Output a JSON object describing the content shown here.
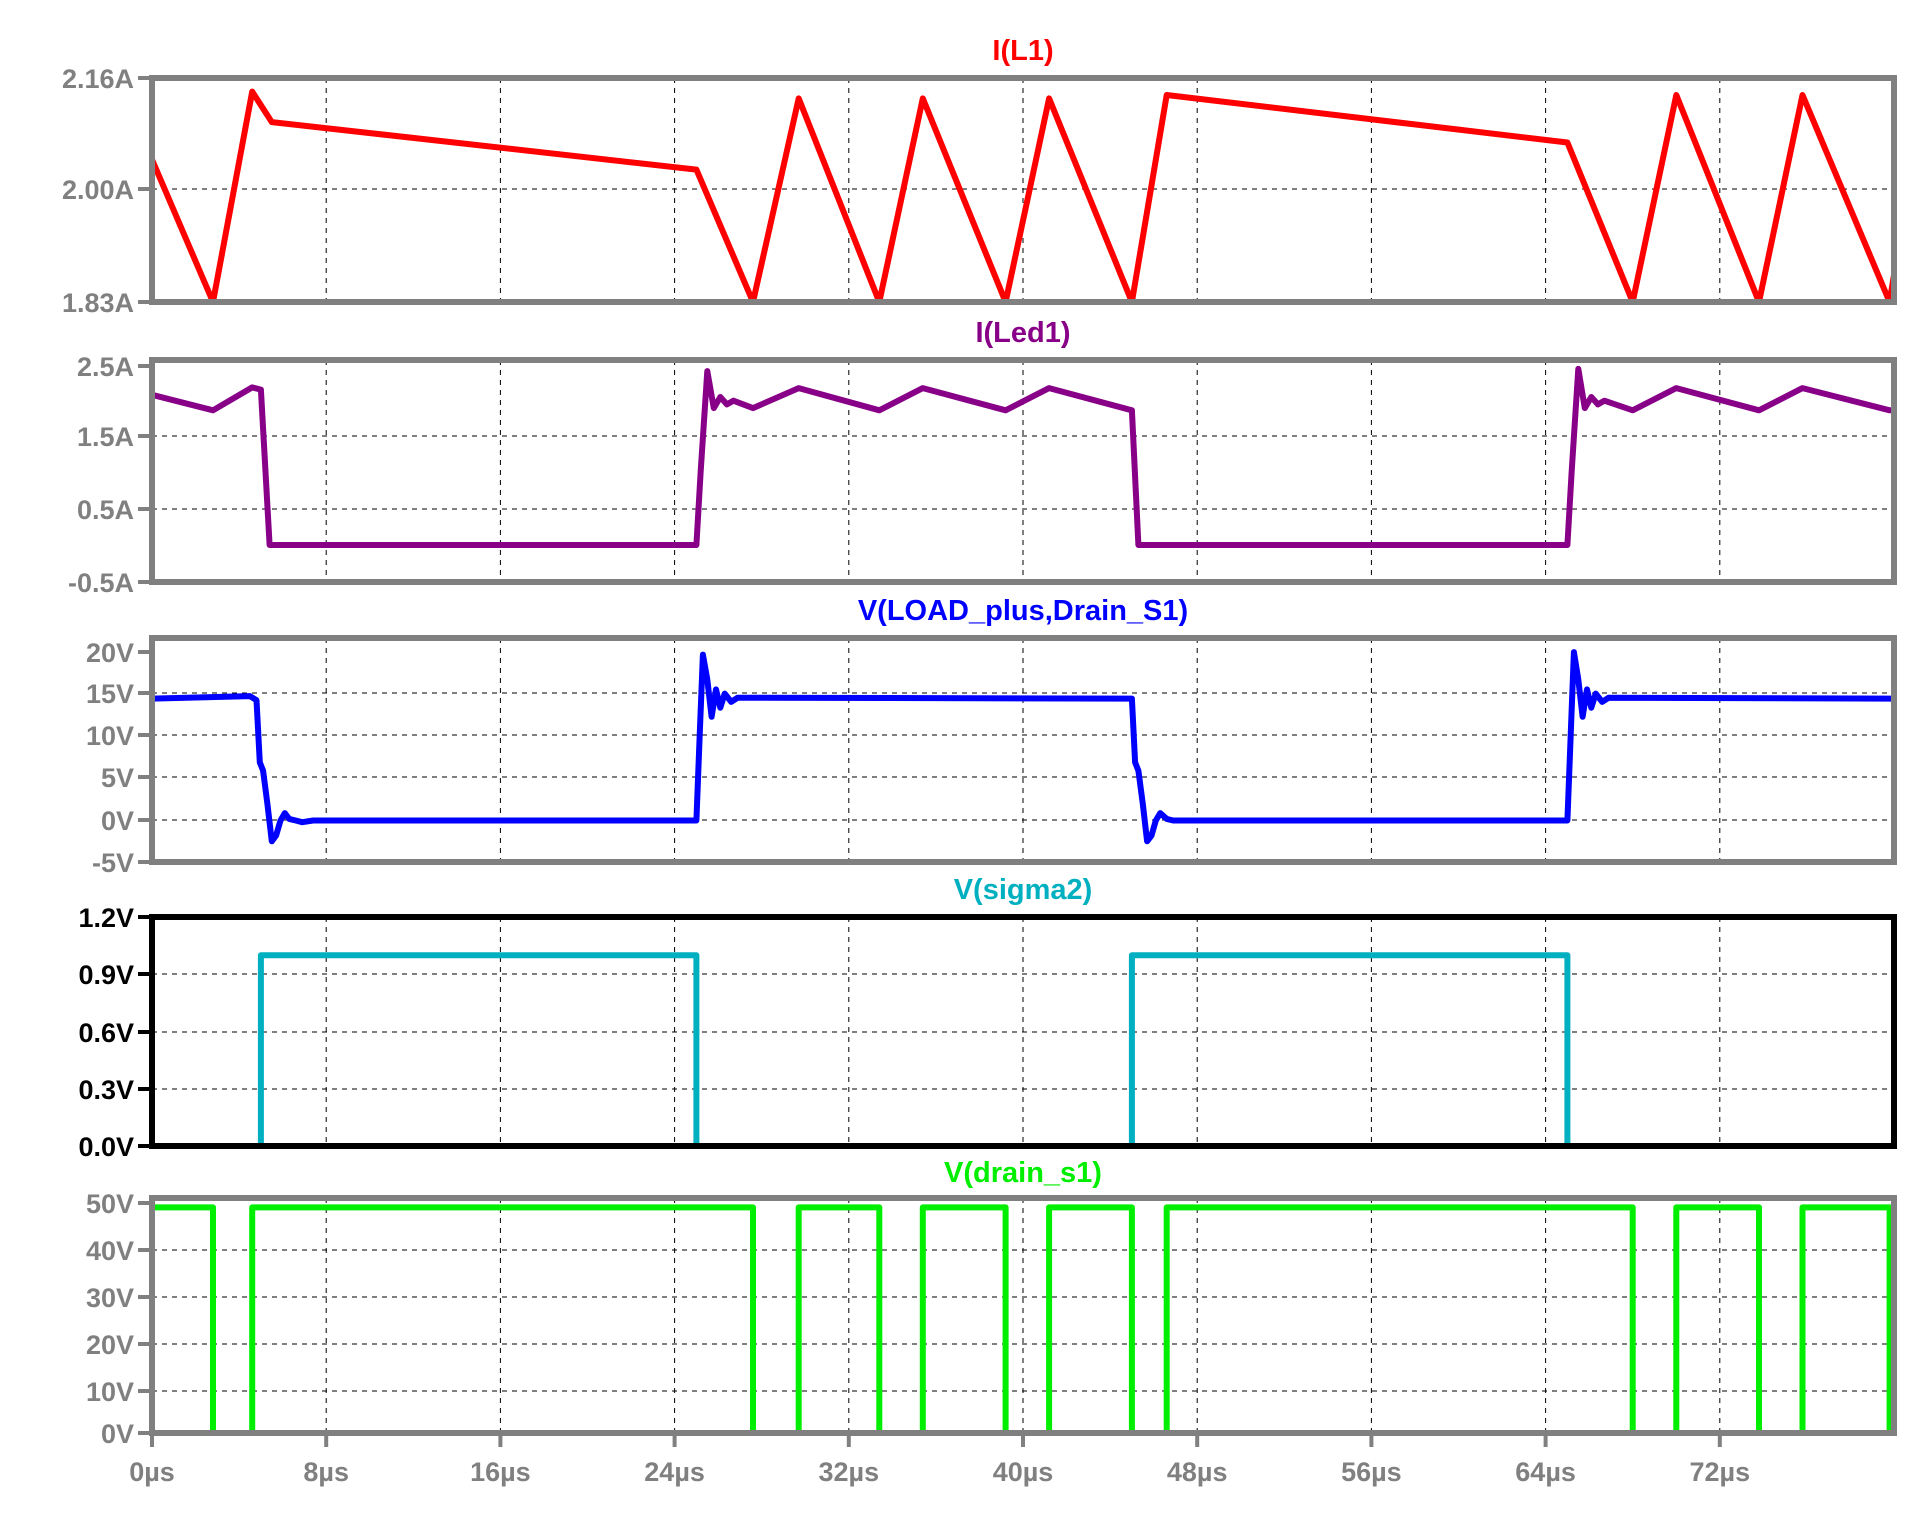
{
  "chart_data": [
    {
      "type": "line",
      "title": "I(L1)",
      "color": "#ff0000",
      "frame_color": "#808080",
      "yticks": [
        "2.16A",
        "2.00A",
        "1.83A"
      ],
      "ylim": [
        1.83,
        2.16
      ],
      "xlim": [
        0,
        80
      ],
      "series": [
        {
          "x": [
            0,
            2.8,
            4.6,
            5.5,
            25,
            27.6,
            29.7,
            33.4,
            35.4,
            39.2,
            41.2,
            45,
            46.6,
            65,
            68,
            70,
            73.8,
            75.8,
            79.8,
            80
          ],
          "y": [
            2.04,
            1.83,
            2.14,
            2.095,
            2.025,
            1.83,
            2.13,
            1.83,
            2.13,
            1.83,
            2.13,
            1.83,
            2.135,
            2.065,
            1.83,
            2.135,
            1.83,
            2.135,
            1.83,
            1.87
          ]
        }
      ]
    },
    {
      "type": "line",
      "title": "I(Led1)",
      "color": "#880088",
      "frame_color": "#808080",
      "yticks": [
        "2.5A",
        "1.5A",
        "0.5A",
        "-0.5A"
      ],
      "ylim": [
        -0.5,
        2.5
      ],
      "xlim": [
        0,
        80
      ],
      "series": [
        {
          "x": [
            0,
            2.8,
            4.6,
            5,
            5.4,
            25,
            25.2,
            25.5,
            25.8,
            26.1,
            26.4,
            26.7,
            27.6,
            29.7,
            33.4,
            35.4,
            39.2,
            41.2,
            45,
            45.3,
            65,
            65.2,
            65.5,
            65.8,
            66.1,
            66.4,
            66.7,
            68,
            70,
            73.8,
            75.8,
            79.8,
            80
          ],
          "y": [
            2.03,
            1.82,
            2.13,
            2.1,
            0,
            0,
            1.0,
            2.35,
            1.85,
            2.0,
            1.9,
            1.95,
            1.85,
            2.12,
            1.82,
            2.12,
            1.82,
            2.12,
            1.82,
            0,
            0,
            1.0,
            2.38,
            1.85,
            2.0,
            1.9,
            1.95,
            1.82,
            2.12,
            1.82,
            2.12,
            1.82,
            1.82
          ]
        }
      ]
    },
    {
      "type": "line",
      "title": "V(LOAD_plus,Drain_S1)",
      "color": "#0000ff",
      "frame_color": "#808080",
      "yticks": [
        "20V",
        "15V",
        "10V",
        "5V",
        "0V",
        "-5V"
      ],
      "ylim": [
        -5,
        22
      ],
      "xlim": [
        0,
        80
      ],
      "series": [
        {
          "x": [
            0,
            4.5,
            4.8,
            4.95,
            5.1,
            5.3,
            5.5,
            5.7,
            5.9,
            6.1,
            6.3,
            6.6,
            6.9,
            7.4,
            25,
            25.15,
            25.3,
            25.5,
            25.7,
            25.9,
            26.1,
            26.3,
            26.6,
            26.9,
            45,
            45.15,
            45.3,
            45.5,
            45.7,
            45.9,
            46.1,
            46.3,
            46.6,
            46.9,
            47.4,
            65,
            65.15,
            65.3,
            65.5,
            65.7,
            65.9,
            66.1,
            66.3,
            66.6,
            66.9,
            80
          ],
          "y": [
            14.7,
            15,
            14.5,
            7,
            6,
            2,
            -2.5,
            -1.8,
            0,
            0.9,
            0.2,
            0,
            -0.2,
            0,
            0,
            10,
            20,
            17,
            12.5,
            15.8,
            13.6,
            15.3,
            14.3,
            14.8,
            14.7,
            7,
            6,
            2,
            -2.5,
            -1.8,
            0,
            0.9,
            0.2,
            0,
            0,
            0,
            10,
            20.3,
            17,
            12.5,
            15.8,
            13.6,
            15.3,
            14.3,
            14.8,
            14.7
          ]
        }
      ]
    },
    {
      "type": "line",
      "title": "V(sigma2)",
      "color": "#00b0c0",
      "frame_color": "#000000",
      "yticks": [
        "1.2V",
        "0.9V",
        "0.6V",
        "0.3V",
        "0.0V"
      ],
      "ylim": [
        0,
        1.2
      ],
      "xlim": [
        0,
        80
      ],
      "series": [
        {
          "x": [
            0,
            5,
            5,
            25,
            25,
            45,
            45,
            65,
            65,
            80
          ],
          "y": [
            0,
            0,
            1,
            1,
            0,
            0,
            1,
            1,
            0,
            0
          ]
        }
      ]
    },
    {
      "type": "line",
      "title": "V(drain_s1)",
      "color": "#00ee00",
      "frame_color": "#808080",
      "yticks": [
        "50V",
        "40V",
        "30V",
        "20V",
        "10V",
        "0V"
      ],
      "ylim": [
        0,
        50
      ],
      "xlim": [
        0,
        80
      ],
      "xticks": [
        "0µs",
        "8µs",
        "16µs",
        "24µs",
        "32µs",
        "40µs",
        "48µs",
        "56µs",
        "64µs",
        "72µs"
      ],
      "series": [
        {
          "x": [
            0,
            2.8,
            2.8,
            4.6,
            4.6,
            27.6,
            27.6,
            29.7,
            29.7,
            33.4,
            33.4,
            35.4,
            35.4,
            39.2,
            39.2,
            41.2,
            41.2,
            45,
            45,
            46.6,
            46.6,
            68,
            68,
            70,
            70,
            73.8,
            73.8,
            75.8,
            75.8,
            79.8,
            79.8,
            80
          ],
          "y": [
            48,
            48,
            0,
            0,
            48,
            48,
            0,
            0,
            48,
            48,
            0,
            0,
            48,
            48,
            0,
            0,
            48,
            48,
            0,
            0,
            48,
            48,
            0,
            0,
            48,
            48,
            0,
            0,
            48,
            48,
            0,
            0
          ]
        }
      ]
    }
  ]
}
